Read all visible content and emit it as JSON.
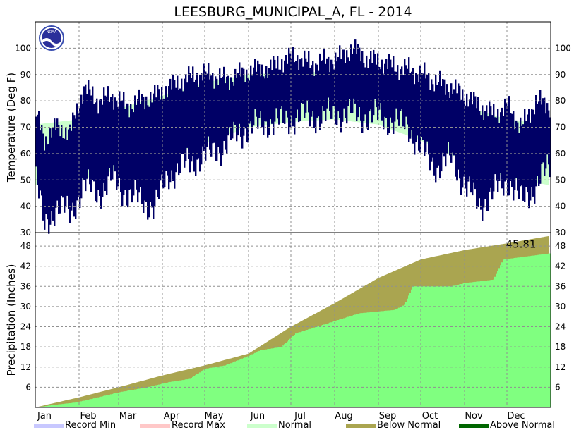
{
  "chart_data": {
    "type": "line",
    "title": "LEESBURG_MUNICIPAL_A, FL - 2014",
    "months": [
      "Jan",
      "Feb",
      "Mar",
      "Apr",
      "May",
      "Jun",
      "Jul",
      "Aug",
      "Sep",
      "Oct",
      "Nov",
      "Dec"
    ],
    "colors": {
      "daily_range": "#000066",
      "record_min": "#c8c8ff",
      "record_max": "#ffc8c8",
      "normal": "#ccffcc",
      "below_normal": "#aaa550",
      "above_normal": "#006600",
      "precip_actual": "#80ff80",
      "grid": "#909090"
    },
    "temperature": {
      "ylabel": "Temperature (Deg F)",
      "ylim": [
        30,
        110
      ],
      "ticks": [
        30,
        40,
        50,
        60,
        70,
        80,
        90,
        100
      ],
      "normal_high": [
        {
          "day": 1,
          "value": 71
        },
        {
          "day": 32,
          "value": 73
        },
        {
          "day": 60,
          "value": 77
        },
        {
          "day": 91,
          "value": 82
        },
        {
          "day": 121,
          "value": 87
        },
        {
          "day": 152,
          "value": 90
        },
        {
          "day": 182,
          "value": 91
        },
        {
          "day": 213,
          "value": 91
        },
        {
          "day": 244,
          "value": 89
        },
        {
          "day": 274,
          "value": 84
        },
        {
          "day": 305,
          "value": 78
        },
        {
          "day": 335,
          "value": 73
        },
        {
          "day": 365,
          "value": 71
        }
      ],
      "normal_low": [
        {
          "day": 1,
          "value": 48
        },
        {
          "day": 32,
          "value": 50
        },
        {
          "day": 60,
          "value": 54
        },
        {
          "day": 91,
          "value": 58
        },
        {
          "day": 121,
          "value": 64
        },
        {
          "day": 152,
          "value": 70
        },
        {
          "day": 182,
          "value": 72
        },
        {
          "day": 213,
          "value": 73
        },
        {
          "day": 244,
          "value": 71
        },
        {
          "day": 274,
          "value": 65
        },
        {
          "day": 305,
          "value": 57
        },
        {
          "day": 335,
          "value": 51
        },
        {
          "day": 365,
          "value": 48
        }
      ],
      "daily_range_approx": [
        {
          "day": 1,
          "low": 50,
          "high": 75
        },
        {
          "day": 7,
          "low": 32,
          "high": 65
        },
        {
          "day": 15,
          "low": 40,
          "high": 70
        },
        {
          "day": 25,
          "low": 37,
          "high": 68
        },
        {
          "day": 35,
          "low": 48,
          "high": 85
        },
        {
          "day": 45,
          "low": 45,
          "high": 80
        },
        {
          "day": 55,
          "low": 50,
          "high": 82
        },
        {
          "day": 65,
          "low": 45,
          "high": 78
        },
        {
          "day": 75,
          "low": 42,
          "high": 80
        },
        {
          "day": 85,
          "low": 40,
          "high": 82
        },
        {
          "day": 95,
          "low": 52,
          "high": 85
        },
        {
          "day": 105,
          "low": 55,
          "high": 88
        },
        {
          "day": 115,
          "low": 58,
          "high": 90
        },
        {
          "day": 125,
          "low": 60,
          "high": 90
        },
        {
          "day": 135,
          "low": 63,
          "high": 88
        },
        {
          "day": 145,
          "low": 68,
          "high": 90
        },
        {
          "day": 155,
          "low": 70,
          "high": 92
        },
        {
          "day": 165,
          "low": 72,
          "high": 92
        },
        {
          "day": 175,
          "low": 72,
          "high": 95
        },
        {
          "day": 185,
          "low": 74,
          "high": 97
        },
        {
          "day": 195,
          "low": 74,
          "high": 94
        },
        {
          "day": 205,
          "low": 74,
          "high": 95
        },
        {
          "day": 215,
          "low": 75,
          "high": 96
        },
        {
          "day": 225,
          "low": 75,
          "high": 100
        },
        {
          "day": 235,
          "low": 74,
          "high": 96
        },
        {
          "day": 245,
          "low": 74,
          "high": 95
        },
        {
          "day": 255,
          "low": 72,
          "high": 93
        },
        {
          "day": 265,
          "low": 70,
          "high": 92
        },
        {
          "day": 275,
          "low": 60,
          "high": 90
        },
        {
          "day": 285,
          "low": 55,
          "high": 87
        },
        {
          "day": 295,
          "low": 58,
          "high": 85
        },
        {
          "day": 305,
          "low": 48,
          "high": 82
        },
        {
          "day": 315,
          "low": 40,
          "high": 78
        },
        {
          "day": 325,
          "low": 45,
          "high": 75
        },
        {
          "day": 335,
          "low": 50,
          "high": 78
        },
        {
          "day": 345,
          "low": 42,
          "high": 70
        },
        {
          "day": 355,
          "low": 48,
          "high": 80
        },
        {
          "day": 365,
          "low": 55,
          "high": 78
        }
      ]
    },
    "precipitation": {
      "ylabel": "Precipitation (Inches)",
      "ylim": [
        0,
        52
      ],
      "ticks": [
        6,
        12,
        18,
        24,
        30,
        36,
        42,
        48
      ],
      "total_label": "45.81",
      "normal_cumulative": [
        {
          "day": 1,
          "value": 0
        },
        {
          "day": 32,
          "value": 3
        },
        {
          "day": 60,
          "value": 6
        },
        {
          "day": 91,
          "value": 9.5
        },
        {
          "day": 121,
          "value": 12.5
        },
        {
          "day": 152,
          "value": 16
        },
        {
          "day": 182,
          "value": 24
        },
        {
          "day": 213,
          "value": 31
        },
        {
          "day": 244,
          "value": 38.5
        },
        {
          "day": 274,
          "value": 44
        },
        {
          "day": 305,
          "value": 46.8
        },
        {
          "day": 335,
          "value": 48.8
        },
        {
          "day": 365,
          "value": 51
        }
      ],
      "actual_cumulative": [
        {
          "day": 1,
          "value": 0
        },
        {
          "day": 15,
          "value": 0.8
        },
        {
          "day": 30,
          "value": 1.5
        },
        {
          "day": 45,
          "value": 3
        },
        {
          "day": 60,
          "value": 4.5
        },
        {
          "day": 80,
          "value": 6
        },
        {
          "day": 95,
          "value": 7.5
        },
        {
          "day": 110,
          "value": 8.5
        },
        {
          "day": 121,
          "value": 11.5
        },
        {
          "day": 135,
          "value": 12.5
        },
        {
          "day": 150,
          "value": 15
        },
        {
          "day": 160,
          "value": 17
        },
        {
          "day": 175,
          "value": 18
        },
        {
          "day": 185,
          "value": 22
        },
        {
          "day": 200,
          "value": 24
        },
        {
          "day": 215,
          "value": 26
        },
        {
          "day": 230,
          "value": 28
        },
        {
          "day": 255,
          "value": 29
        },
        {
          "day": 262,
          "value": 30.5
        },
        {
          "day": 268,
          "value": 36
        },
        {
          "day": 295,
          "value": 36
        },
        {
          "day": 305,
          "value": 37
        },
        {
          "day": 325,
          "value": 38
        },
        {
          "day": 332,
          "value": 44
        },
        {
          "day": 350,
          "value": 45
        },
        {
          "day": 365,
          "value": 45.81
        }
      ]
    },
    "legend": [
      "Record Min",
      "Record Max",
      "Normal",
      "Below Normal",
      "Above Normal"
    ]
  }
}
